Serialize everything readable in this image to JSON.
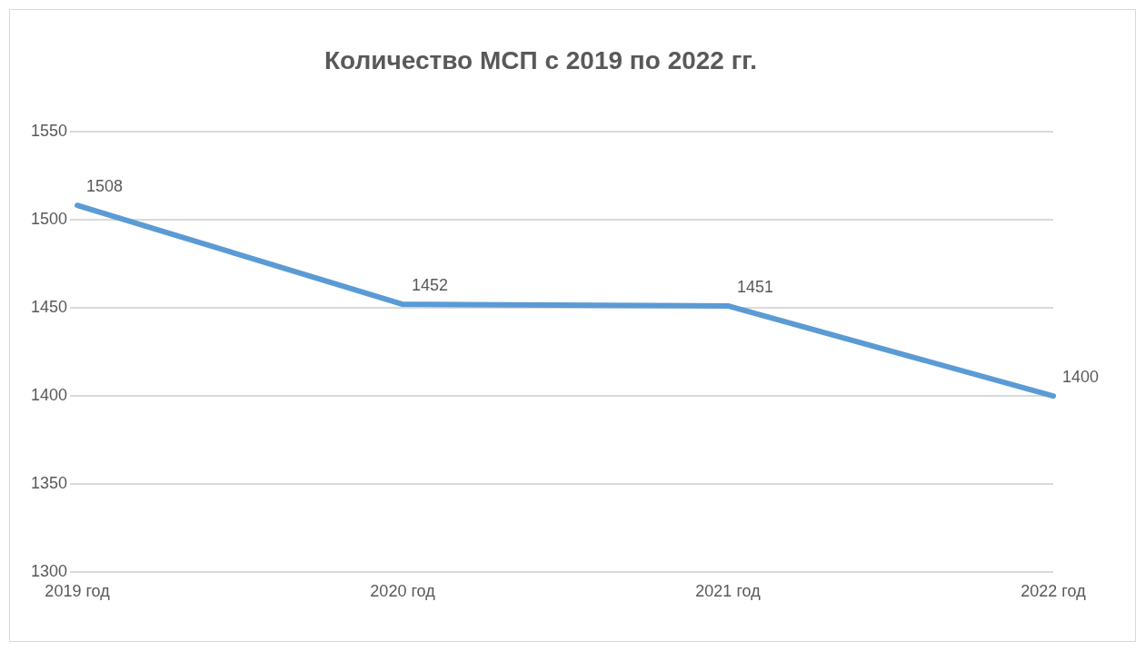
{
  "chart_data": {
    "type": "line",
    "title": "Количество МСП с 2019 по 2022 гг.",
    "categories": [
      "2019 год",
      "2020 год",
      "2021 год",
      "2022 год"
    ],
    "series": [
      {
        "color": "#5b9bd5",
        "values": [
          1508,
          1452,
          1451,
          1400
        ]
      }
    ],
    "ylim": [
      1300,
      1550
    ],
    "yticks": [
      1300,
      1350,
      1400,
      1450,
      1500,
      1550
    ],
    "grid": "y",
    "data_labels": true,
    "legend": false,
    "marker": "none",
    "line_style": "solid"
  }
}
